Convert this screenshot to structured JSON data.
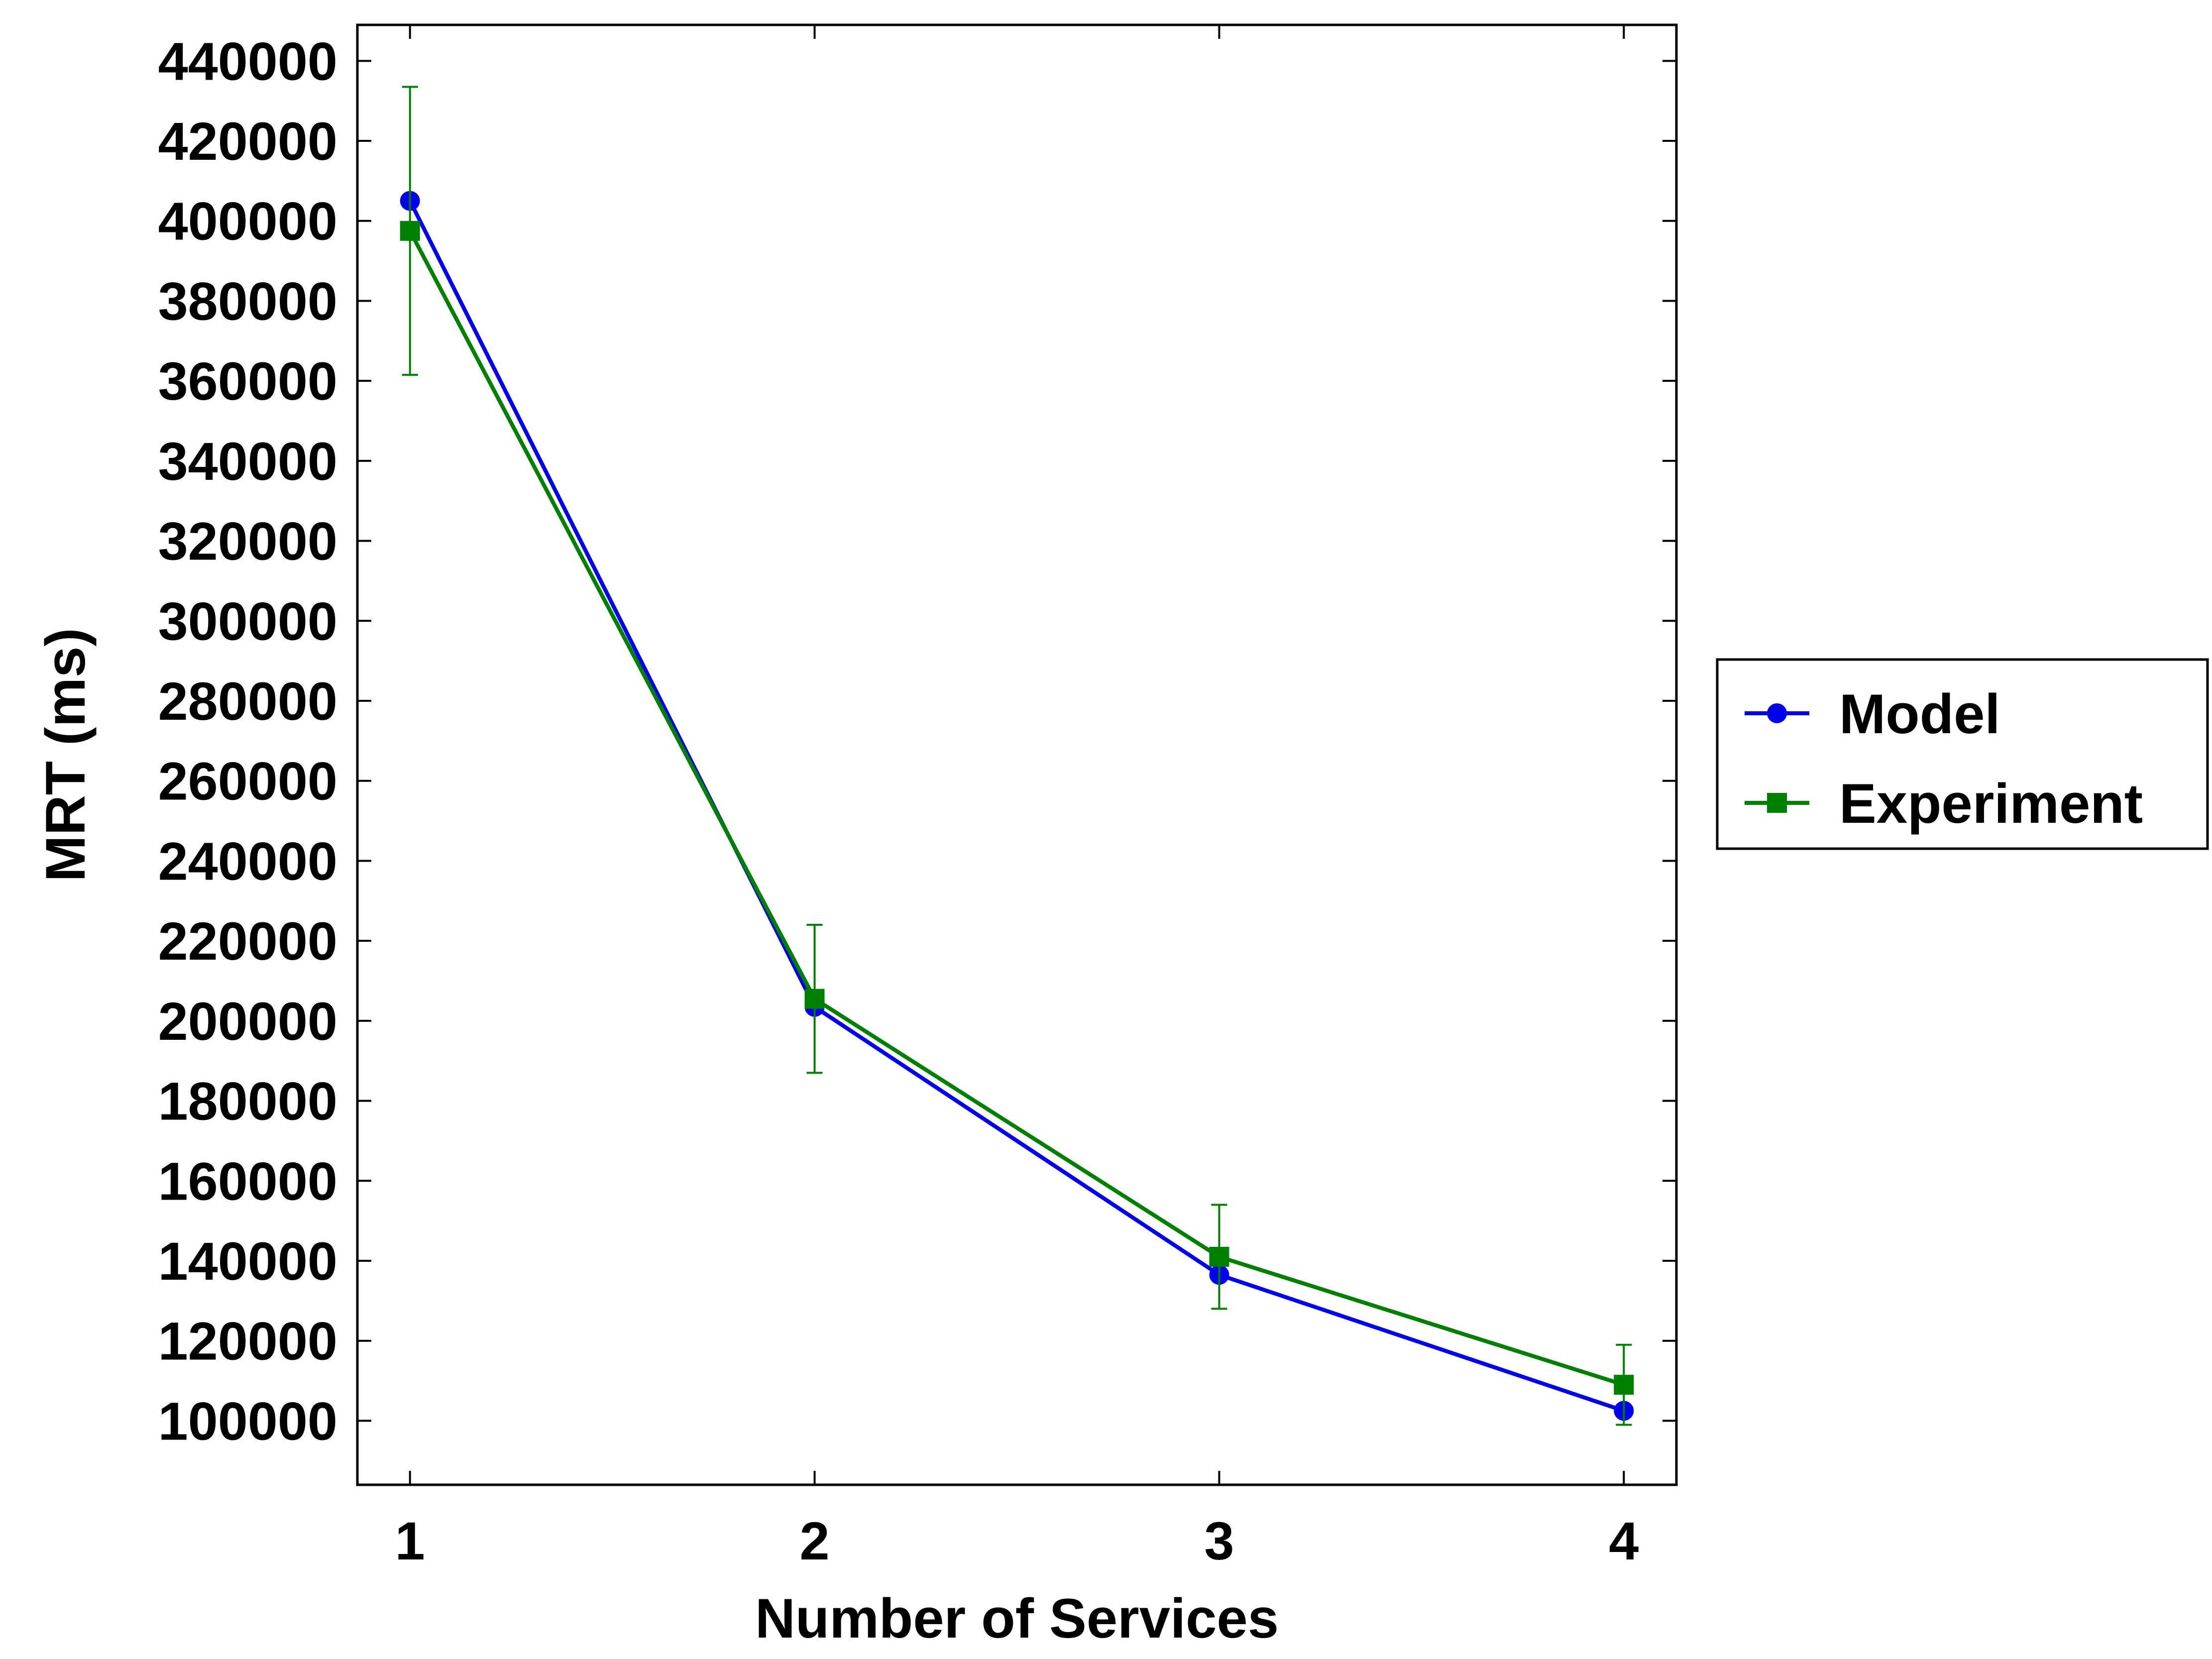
{
  "chart_data": {
    "type": "line",
    "xlabel": "Number of Services",
    "ylabel": "MRT (ms)",
    "x": [
      1,
      2,
      3,
      4
    ],
    "xticks": [
      "1",
      "2",
      "3",
      "4"
    ],
    "xlim": [
      0.87,
      4.13
    ],
    "ylim": [
      84000,
      449000
    ],
    "yticks": [
      "100000",
      "120000",
      "140000",
      "160000",
      "180000",
      "200000",
      "220000",
      "240000",
      "260000",
      "280000",
      "300000",
      "320000",
      "340000",
      "360000",
      "380000",
      "400000",
      "420000",
      "440000"
    ],
    "ytick_values": [
      100000,
      120000,
      140000,
      160000,
      180000,
      200000,
      220000,
      240000,
      260000,
      280000,
      300000,
      320000,
      340000,
      360000,
      380000,
      400000,
      420000,
      440000
    ],
    "grid": false,
    "legend_position": "right",
    "series": [
      {
        "name": "Model",
        "values": [
          405000,
          203500,
          136500,
          102500
        ],
        "marker": "circle",
        "color": "#0000ee"
      },
      {
        "name": "Experiment",
        "values": [
          397500,
          205500,
          141000,
          109000
        ],
        "error_low": [
          361500,
          187000,
          128000,
          99000
        ],
        "error_high": [
          433500,
          224000,
          154000,
          119000
        ],
        "marker": "square",
        "color": "#008000"
      }
    ]
  }
}
